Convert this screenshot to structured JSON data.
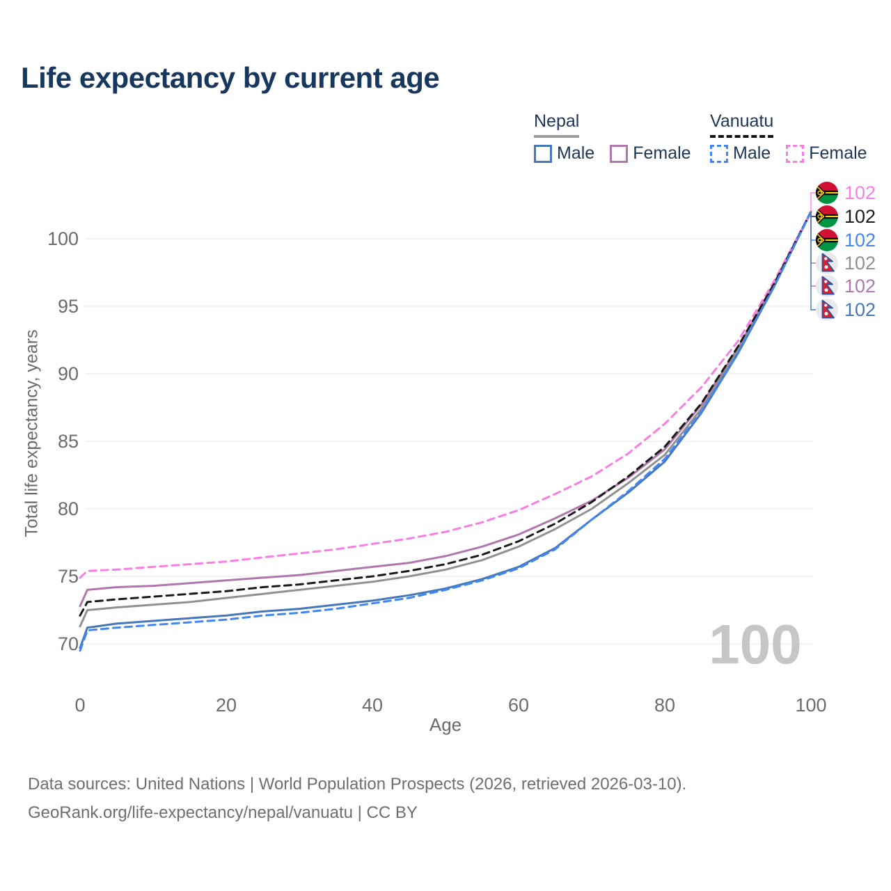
{
  "header": {
    "title": "Life expectancy by current age"
  },
  "legend": {
    "nepal": {
      "label": "Nepal",
      "male_label": "Male",
      "female_label": "Female"
    },
    "vanuatu": {
      "label": "Vanuatu",
      "male_label": "Male",
      "female_label": "Female"
    }
  },
  "axes": {
    "y_title": "Total life expectancy, years",
    "x_title": "Age"
  },
  "watermark": "100",
  "colors": {
    "title": "#17375e",
    "legend_text": "#1d3557",
    "axis_text": "#6b6b6b",
    "grid": "#ececec",
    "footer": "#6e6e6e",
    "watermark": "#c6c6c6",
    "nepal_male": "#4677b8",
    "nepal_female": "#b077ae",
    "nepal_total": "#919191",
    "vanuatu_male": "#4285f4",
    "vanuatu_female": "#f97ee3",
    "vanuatu_total": "#1a1a1a"
  },
  "end_labels": [
    {
      "series": "vanuatu_female",
      "flag": "vu",
      "value": "102",
      "color": "#f97ee3"
    },
    {
      "series": "vanuatu_total",
      "flag": "vu",
      "value": "102",
      "color": "#1a1a1a"
    },
    {
      "series": "vanuatu_male",
      "flag": "vu",
      "value": "102",
      "color": "#4285f4"
    },
    {
      "series": "nepal_total",
      "flag": "np",
      "value": "102",
      "color": "#919191"
    },
    {
      "series": "nepal_female",
      "flag": "np",
      "value": "102",
      "color": "#b077ae"
    },
    {
      "series": "nepal_male",
      "flag": "np",
      "value": "102",
      "color": "#4677b8"
    }
  ],
  "footer": {
    "line1": "Data sources: United Nations | World Population Prospects (2026, retrieved 2026-03-10).",
    "line2": "GeoRank.org/life-expectancy/nepal/vanuatu | CC BY"
  },
  "chart_data": {
    "type": "line",
    "title": "Life expectancy by current age",
    "xlabel": "Age",
    "ylabel": "Total life expectancy, years",
    "xlim": [
      0,
      100
    ],
    "ylim": [
      68,
      104
    ],
    "xticks": [
      0,
      20,
      40,
      60,
      80,
      100
    ],
    "yticks": [
      70,
      75,
      80,
      85,
      90,
      95,
      100
    ],
    "grid": "horizontal",
    "legend_position": "top-right",
    "x": [
      0,
      1,
      5,
      10,
      15,
      20,
      25,
      30,
      35,
      40,
      45,
      50,
      55,
      60,
      65,
      70,
      75,
      80,
      85,
      90,
      95,
      100
    ],
    "series": [
      {
        "id": "nepal_female",
        "name": "Nepal Female",
        "country": "Nepal",
        "sex": "Female",
        "style": "solid",
        "color": "#b077ae",
        "values": [
          72.8,
          74.0,
          74.2,
          74.3,
          74.5,
          74.7,
          74.9,
          75.1,
          75.4,
          75.7,
          76.0,
          76.5,
          77.2,
          78.1,
          79.3,
          80.6,
          82.3,
          84.4,
          87.7,
          91.9,
          96.7,
          102
        ]
      },
      {
        "id": "nepal_total",
        "name": "Nepal",
        "country": "Nepal",
        "sex": "Both",
        "style": "solid",
        "color": "#919191",
        "values": [
          71.3,
          72.5,
          72.7,
          72.9,
          73.1,
          73.4,
          73.7,
          74.0,
          74.3,
          74.6,
          75.0,
          75.5,
          76.2,
          77.2,
          78.5,
          80.0,
          81.9,
          84.0,
          87.4,
          91.7,
          96.6,
          102
        ]
      },
      {
        "id": "nepal_male",
        "name": "Nepal Male",
        "country": "Nepal",
        "sex": "Male",
        "style": "solid",
        "color": "#4677b8",
        "values": [
          69.7,
          71.2,
          71.5,
          71.7,
          71.9,
          72.1,
          72.4,
          72.6,
          72.9,
          73.2,
          73.6,
          74.1,
          74.8,
          75.7,
          77.1,
          79.2,
          81.2,
          83.5,
          87.1,
          91.5,
          96.5,
          102
        ]
      },
      {
        "id": "vanuatu_female",
        "name": "Vanuatu Female",
        "country": "Vanuatu",
        "sex": "Female",
        "style": "dashed",
        "color": "#f97ee3",
        "values": [
          74.9,
          75.4,
          75.5,
          75.7,
          75.9,
          76.1,
          76.4,
          76.7,
          77.0,
          77.4,
          77.8,
          78.3,
          79.0,
          79.9,
          81.1,
          82.4,
          84.1,
          86.3,
          89.0,
          92.4,
          96.9,
          102
        ]
      },
      {
        "id": "vanuatu_total",
        "name": "Vanuatu",
        "country": "Vanuatu",
        "sex": "Both",
        "style": "dashed",
        "color": "#1a1a1a",
        "values": [
          72.1,
          73.1,
          73.3,
          73.5,
          73.7,
          73.9,
          74.2,
          74.4,
          74.7,
          75.0,
          75.4,
          75.9,
          76.6,
          77.6,
          78.9,
          80.5,
          82.4,
          84.6,
          87.8,
          92.0,
          96.7,
          102
        ]
      },
      {
        "id": "vanuatu_male",
        "name": "Vanuatu Male",
        "country": "Vanuatu",
        "sex": "Male",
        "style": "dashed",
        "color": "#4285f4",
        "values": [
          69.5,
          71.0,
          71.2,
          71.4,
          71.6,
          71.8,
          72.1,
          72.3,
          72.6,
          73.0,
          73.4,
          74.0,
          74.7,
          75.6,
          77.0,
          79.2,
          81.3,
          83.7,
          87.2,
          91.5,
          96.5,
          102
        ]
      }
    ],
    "end_value_label": "102",
    "age_counter_watermark": "100"
  }
}
